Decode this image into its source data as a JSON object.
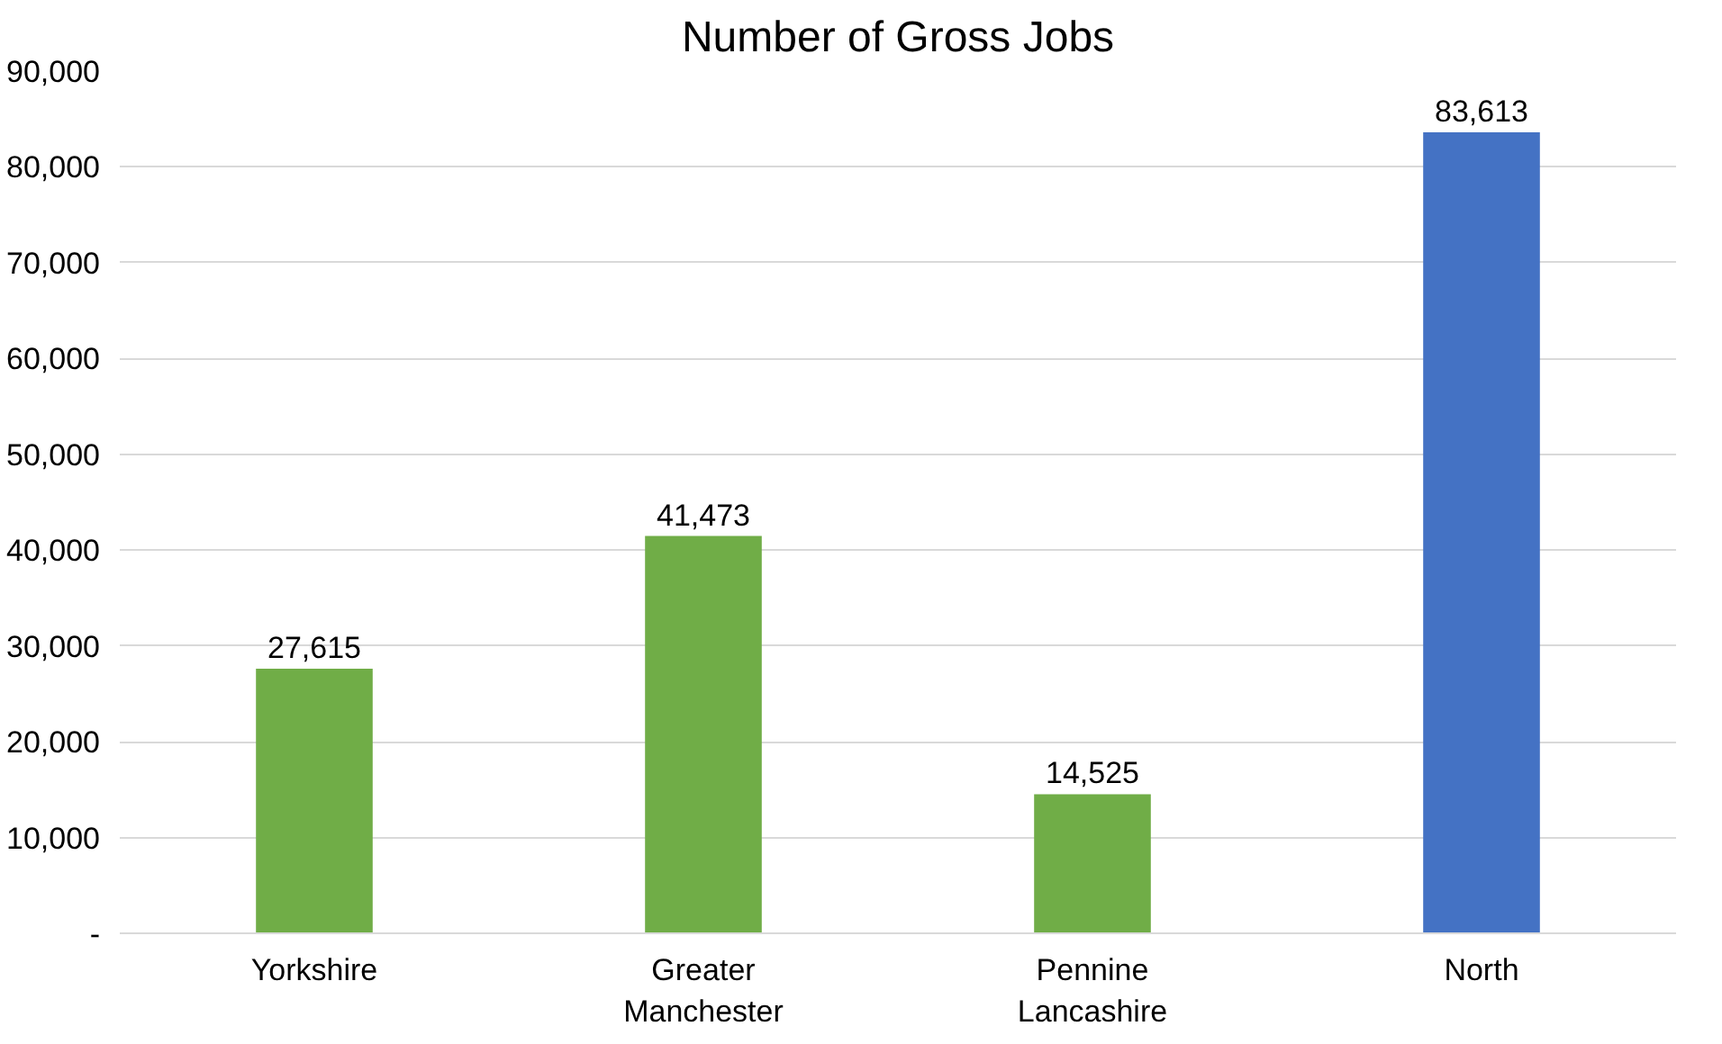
{
  "chart_data": {
    "type": "bar",
    "title": "Number of Gross Jobs",
    "categories": [
      "Yorkshire",
      "Greater Manchester",
      "Pennine Lancashire",
      "North"
    ],
    "values": [
      27615,
      41473,
      14525,
      83613
    ],
    "colors": [
      "#70ad47",
      "#70ad47",
      "#70ad47",
      "#4472c4"
    ],
    "ylim": [
      0,
      90000
    ],
    "yticks": [
      {
        "value": 0,
        "label": "-"
      },
      {
        "value": 10000,
        "label": "10,000"
      },
      {
        "value": 20000,
        "label": "20,000"
      },
      {
        "value": 30000,
        "label": "30,000"
      },
      {
        "value": 40000,
        "label": "40,000"
      },
      {
        "value": 50000,
        "label": "50,000"
      },
      {
        "value": 60000,
        "label": "60,000"
      },
      {
        "value": 70000,
        "label": "70,000"
      },
      {
        "value": 80000,
        "label": "80,000"
      },
      {
        "value": 90000,
        "label": "90,000"
      }
    ],
    "value_labels": [
      "27,615",
      "41,473",
      "14,525",
      "83,613"
    ],
    "grid": "y"
  }
}
